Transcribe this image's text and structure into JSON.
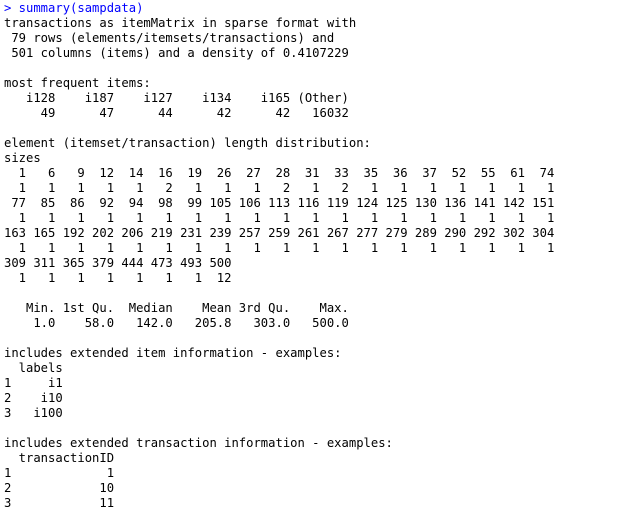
{
  "console": {
    "prompt": "> summary(sampdata)",
    "output_lines": [
      "transactions as itemMatrix in sparse format with",
      " 79 rows (elements/itemsets/transactions) and",
      " 501 columns (items) and a density of 0.4107229",
      "",
      "most frequent items:",
      "   i128    i187    i127    i134    i165 (Other)",
      "     49      47      44      42      42   16032",
      "",
      "element (itemset/transaction) length distribution:",
      "sizes",
      "  1   6   9  12  14  16  19  26  27  28  31  33  35  36  37  52  55  61  74",
      "  1   1   1   1   1   2   1   1   1   2   1   2   1   1   1   1   1   1   1",
      " 77  85  86  92  94  98  99 105 106 113 116 119 124 125 130 136 141 142 151",
      "  1   1   1   1   1   1   1   1   1   1   1   1   1   1   1   1   1   1   1",
      "163 165 192 202 206 219 231 239 257 259 261 267 277 279 289 290 292 302 304",
      "  1   1   1   1   1   1   1   1   1   1   1   1   1   1   1   1   1   1   1",
      "309 311 365 379 444 473 493 500",
      "  1   1   1   1   1   1   1  12",
      "",
      "   Min. 1st Qu.  Median    Mean 3rd Qu.    Max. ",
      "    1.0    58.0   142.0   205.8   303.0   500.0 ",
      "",
      "includes extended item information - examples:",
      "  labels",
      "1     i1",
      "2    i10",
      "3   i100",
      "",
      "includes extended transaction information - examples:",
      "  transactionID",
      "1             1",
      "2            10",
      "3            11"
    ]
  },
  "colors": {
    "background": "#ffffff",
    "command_text": "#0000ff",
    "output_text": "#000000"
  }
}
